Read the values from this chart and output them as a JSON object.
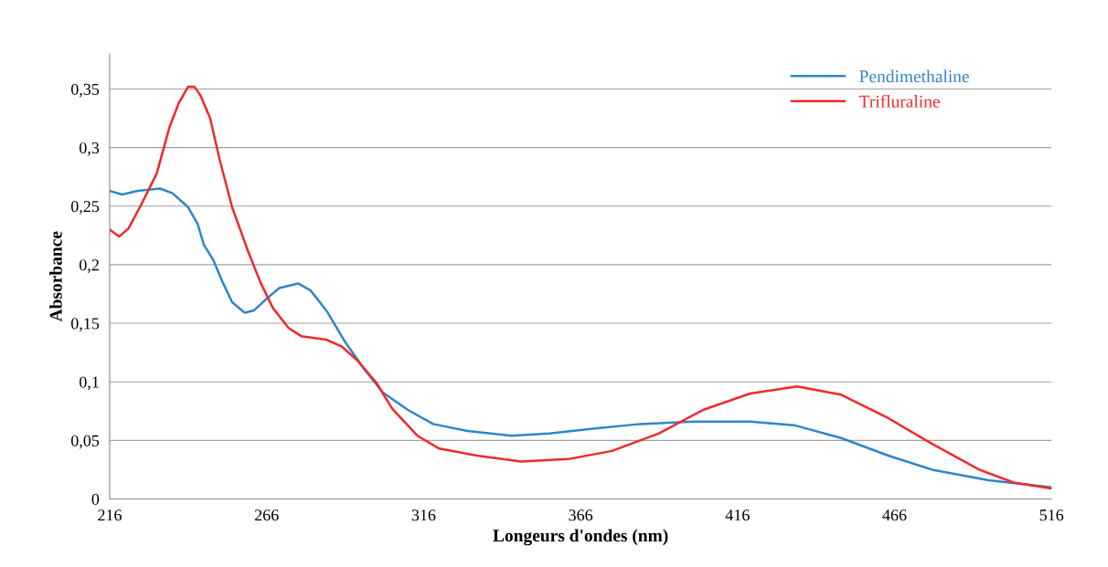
{
  "chart_data": {
    "type": "line",
    "xlabel": "Longeurs d'ondes (nm)",
    "ylabel": "Absorbance",
    "xlim": [
      216,
      516
    ],
    "xticks": [
      216,
      266,
      316,
      366,
      416,
      466,
      516
    ],
    "ylim": [
      0,
      0.38
    ],
    "yticks": [
      {
        "value": 0,
        "label": "0"
      },
      {
        "value": 0.05,
        "label": "0,05"
      },
      {
        "value": 0.1,
        "label": "0,1"
      },
      {
        "value": 0.15,
        "label": "0,15"
      },
      {
        "value": 0.2,
        "label": "0,2"
      },
      {
        "value": 0.25,
        "label": "0,25"
      },
      {
        "value": 0.3,
        "label": "0,3"
      },
      {
        "value": 0.35,
        "label": "0,35"
      }
    ],
    "grid": "y",
    "legend": "top right",
    "marker": "none",
    "line_style": "solid",
    "series": [
      {
        "name": "Pendimethaline",
        "color": "#2e86c8",
        "x": [
          216,
          220,
          225,
          232,
          236,
          241,
          244,
          246,
          249,
          252,
          255,
          259,
          262,
          266,
          270,
          276,
          280,
          285,
          291,
          297,
          303,
          311,
          319,
          330,
          344,
          356,
          370,
          385,
          402,
          420,
          434,
          449,
          464,
          478,
          496,
          516
        ],
        "values": [
          0.263,
          0.26,
          0.263,
          0.265,
          0.261,
          0.249,
          0.235,
          0.217,
          0.204,
          0.185,
          0.168,
          0.159,
          0.161,
          0.171,
          0.18,
          0.184,
          0.178,
          0.161,
          0.134,
          0.111,
          0.091,
          0.076,
          0.064,
          0.058,
          0.054,
          0.056,
          0.06,
          0.064,
          0.066,
          0.066,
          0.063,
          0.052,
          0.037,
          0.025,
          0.016,
          0.01
        ]
      },
      {
        "name": "Trifluraline",
        "color": "#f0282d",
        "x": [
          216,
          219,
          222,
          226,
          231,
          235,
          238,
          241,
          243,
          245,
          248,
          251,
          255,
          260,
          264,
          268,
          273,
          277,
          285,
          290,
          295,
          301,
          306,
          314,
          321,
          333,
          347,
          362,
          376,
          391,
          405,
          420,
          435,
          449,
          464,
          478,
          493,
          504,
          516
        ],
        "values": [
          0.23,
          0.224,
          0.231,
          0.251,
          0.278,
          0.317,
          0.338,
          0.352,
          0.352,
          0.344,
          0.325,
          0.29,
          0.249,
          0.212,
          0.185,
          0.163,
          0.146,
          0.139,
          0.136,
          0.13,
          0.118,
          0.099,
          0.077,
          0.054,
          0.043,
          0.037,
          0.032,
          0.034,
          0.041,
          0.056,
          0.076,
          0.09,
          0.096,
          0.089,
          0.069,
          0.047,
          0.025,
          0.014,
          0.009
        ]
      }
    ]
  }
}
